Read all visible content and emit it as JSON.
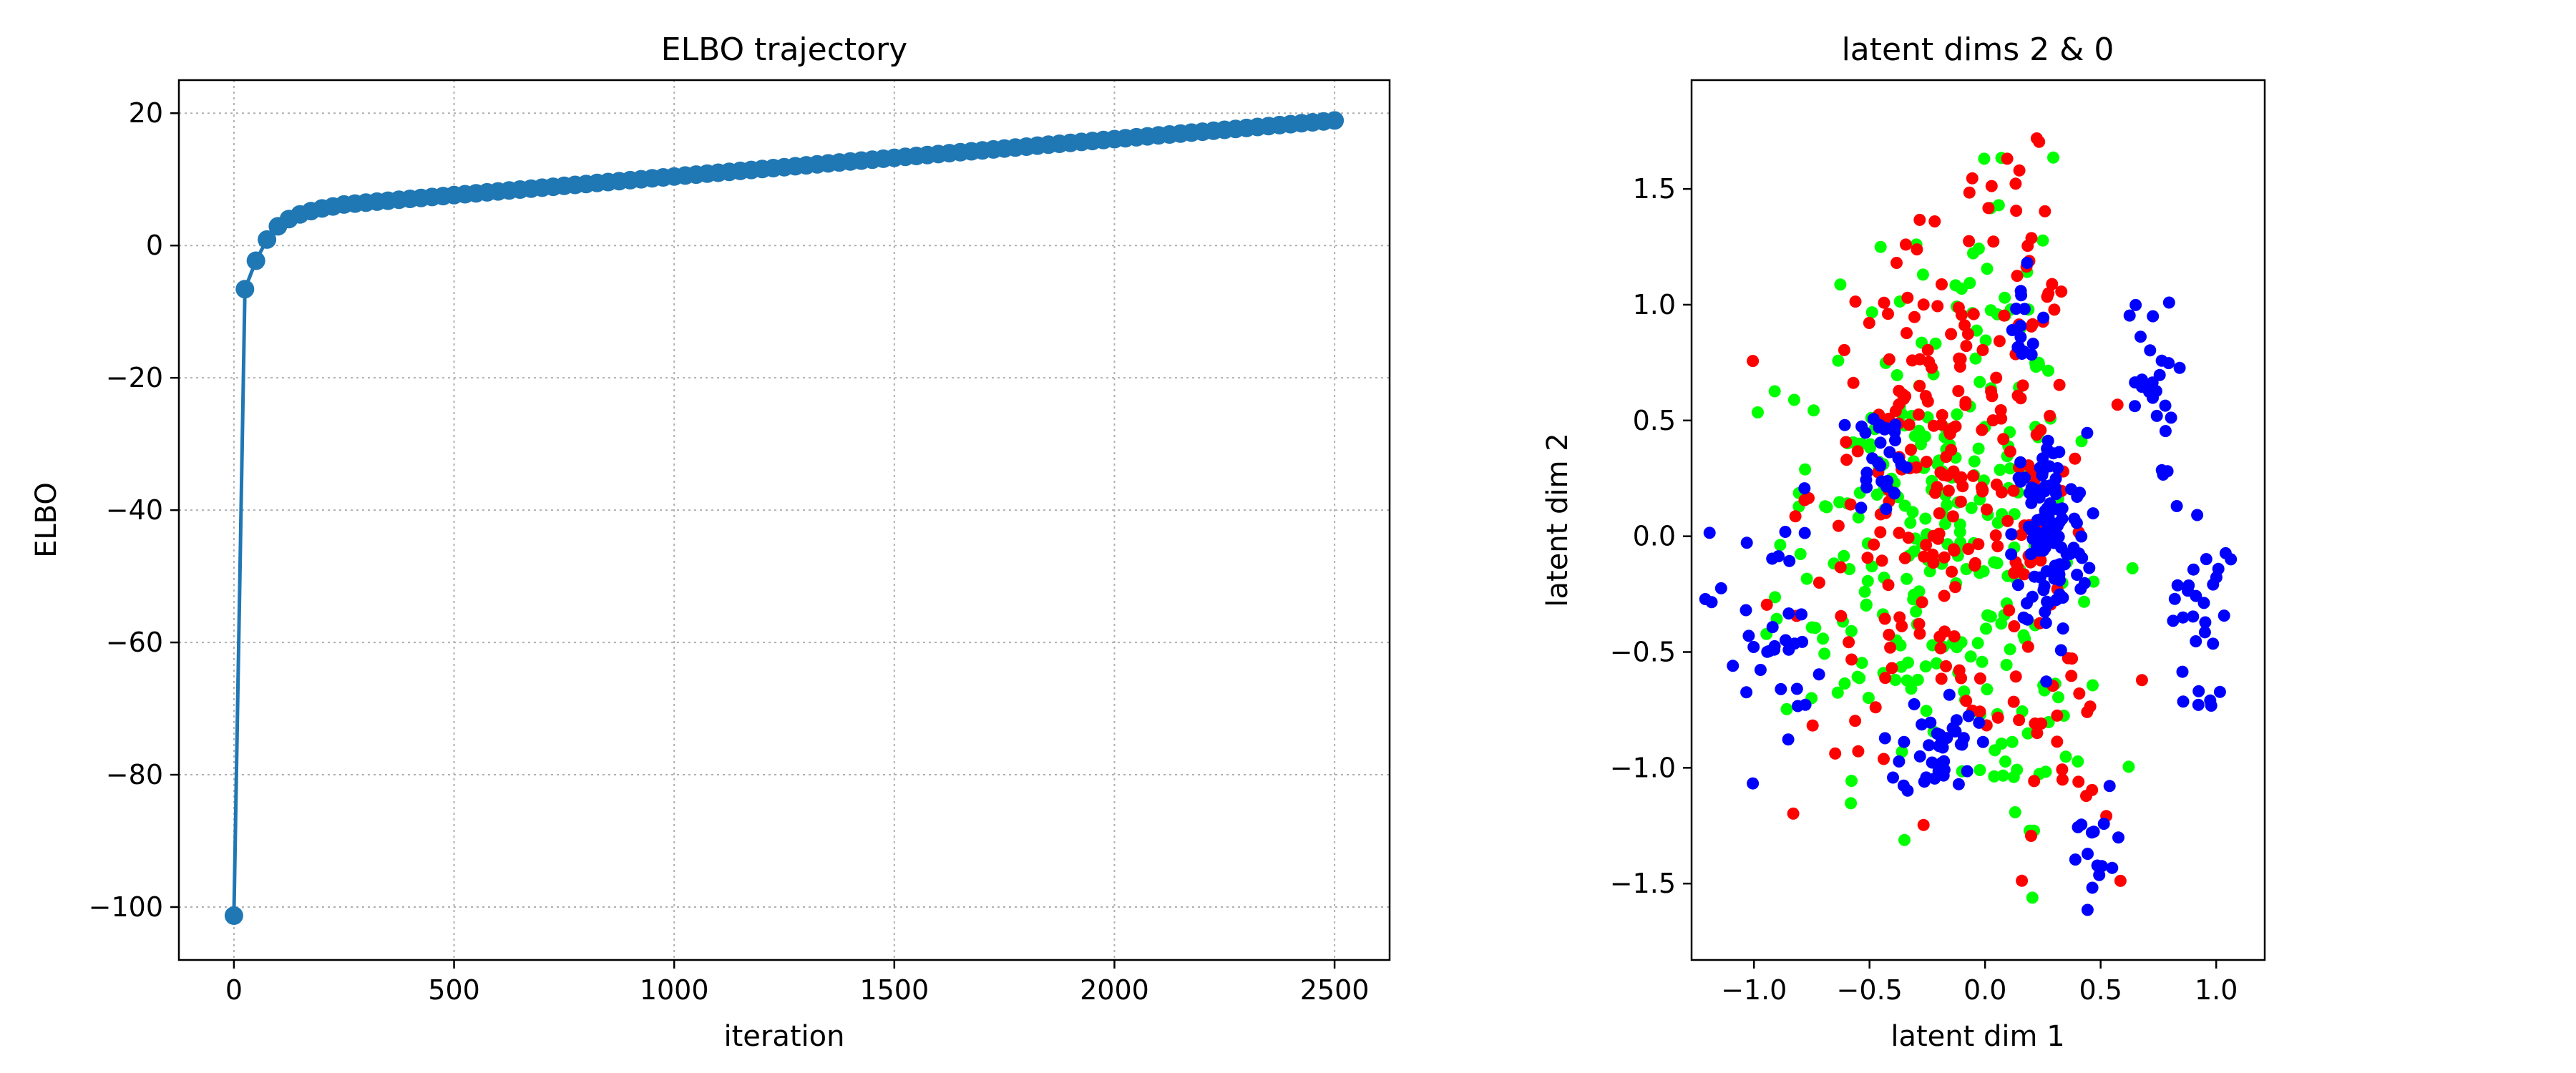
{
  "chart_data": [
    {
      "type": "line",
      "title": "ELBO trajectory",
      "xlabel": "iteration",
      "ylabel": "ELBO",
      "xlim": [
        -125,
        2625
      ],
      "ylim": [
        -108,
        25
      ],
      "xticks": [
        0,
        500,
        1000,
        1500,
        2000,
        2500
      ],
      "yticks": [
        -100,
        -80,
        -60,
        -40,
        -20,
        0,
        20
      ],
      "grid": true,
      "marker": "circle",
      "color": "#1f77b4",
      "early_points": [
        {
          "x": 0,
          "y": -101.3
        },
        {
          "x": 25,
          "y": -6.6
        },
        {
          "x": 50,
          "y": -2.3
        },
        {
          "x": 75,
          "y": 0.9
        },
        {
          "x": 100,
          "y": 2.9
        },
        {
          "x": 125,
          "y": 4.0
        },
        {
          "x": 150,
          "y": 4.7
        },
        {
          "x": 175,
          "y": 5.2
        },
        {
          "x": 200,
          "y": 5.6
        },
        {
          "x": 225,
          "y": 5.9
        },
        {
          "x": 250,
          "y": 6.2
        }
      ],
      "late_trend": {
        "x_start": 250,
        "x_end": 2500,
        "step": 25,
        "y_start": 6.2,
        "y_end": 18.9
      }
    },
    {
      "type": "scatter",
      "title": "latent dims 2 & 0",
      "xlabel": "latent dim 1",
      "ylabel": "latent dim 2",
      "xlim": [
        -1.27,
        1.21
      ],
      "ylim": [
        -1.83,
        1.97
      ],
      "xticks": [
        -1.0,
        -0.5,
        0.0,
        0.5,
        1.0
      ],
      "yticks": [
        -1.5,
        -1.0,
        -0.5,
        0.0,
        0.5,
        1.0,
        1.5
      ],
      "grid": false,
      "groups": [
        {
          "color": "#0000ff",
          "clusters": [
            {
              "cx": 0.28,
              "cy": 0.0,
              "sx": 0.08,
              "sy": 0.22,
              "n": 120
            },
            {
              "cx": -0.2,
              "cy": -0.9,
              "sx": 0.08,
              "sy": 0.12,
              "n": 40
            },
            {
              "cx": -0.45,
              "cy": 0.35,
              "sx": 0.06,
              "sy": 0.12,
              "n": 30
            },
            {
              "cx": 0.15,
              "cy": 0.9,
              "sx": 0.05,
              "sy": 0.12,
              "n": 15
            },
            {
              "cx": 0.7,
              "cy": 0.65,
              "sx": 0.06,
              "sy": 0.2,
              "n": 25
            },
            {
              "cx": 0.93,
              "cy": -0.35,
              "sx": 0.06,
              "sy": 0.25,
              "n": 30
            },
            {
              "cx": -0.95,
              "cy": -0.4,
              "sx": 0.12,
              "sy": 0.3,
              "n": 35
            },
            {
              "cx": 0.48,
              "cy": -1.4,
              "sx": 0.07,
              "sy": 0.15,
              "n": 15
            }
          ]
        },
        {
          "color": "#ff0000",
          "clusters": [
            {
              "cx": -0.15,
              "cy": 0.2,
              "sx": 0.3,
              "sy": 0.55,
              "n": 230
            },
            {
              "cx": 0.2,
              "cy": 1.4,
              "sx": 0.08,
              "sy": 0.2,
              "n": 15
            },
            {
              "cx": 0.3,
              "cy": -0.9,
              "sx": 0.12,
              "sy": 0.35,
              "n": 25
            }
          ]
        },
        {
          "color": "#00ff00",
          "clusters": [
            {
              "cx": -0.25,
              "cy": 0.0,
              "sx": 0.32,
              "sy": 0.5,
              "n": 230
            },
            {
              "cx": 0.05,
              "cy": 1.2,
              "sx": 0.12,
              "sy": 0.25,
              "n": 25
            },
            {
              "cx": 0.2,
              "cy": -0.9,
              "sx": 0.15,
              "sy": 0.3,
              "n": 30
            }
          ]
        }
      ]
    }
  ]
}
